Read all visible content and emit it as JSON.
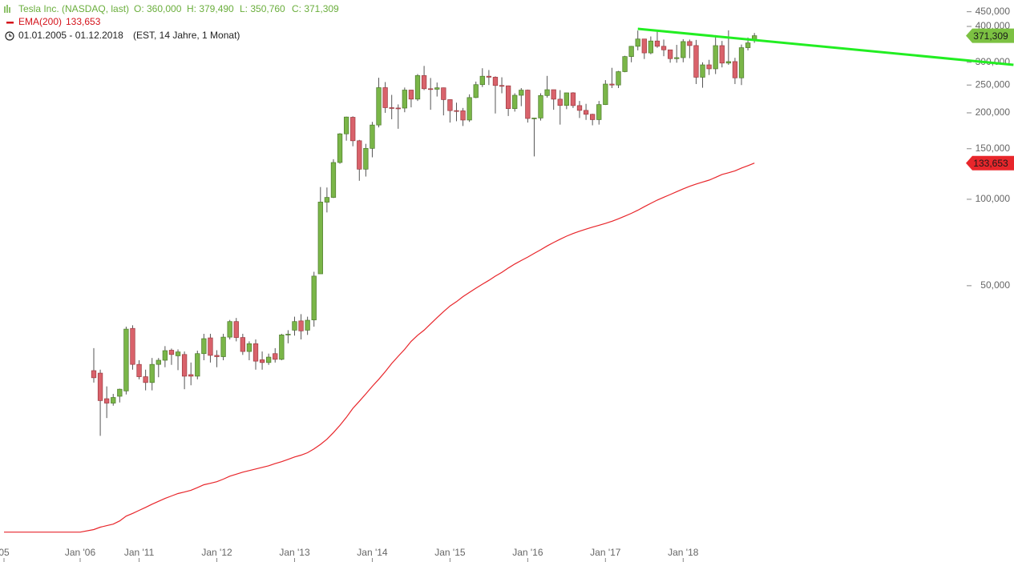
{
  "chart_data": {
    "type": "candlestick",
    "title": "Tesla Inc. (NASDAQ, last)",
    "ohlc_labels": [
      "O: 360,000",
      "H: 379,490",
      "L: 350,760",
      "C: 371,309"
    ],
    "period": "01.01.2005 - 01.12.2018",
    "period_note": "(EST, 14 Jahre, 1 Monat)",
    "log_scale": true,
    "ylim": [
      6.28,
      494.4
    ],
    "yticks": [
      {
        "value": 50,
        "label": "50,000"
      },
      {
        "value": 100,
        "label": "100,000"
      },
      {
        "value": 150,
        "label": "150,000"
      },
      {
        "value": 200,
        "label": "200,000"
      },
      {
        "value": 250,
        "label": "250,000"
      },
      {
        "value": 300,
        "label": "300,000"
      },
      {
        "value": 400,
        "label": "400,000"
      },
      {
        "value": 450,
        "label": "450,000"
      }
    ],
    "up_color": "#7ab648",
    "down_color": "#d9626b",
    "last_label": "371,309",
    "last_color": "#7cc142",
    "categories": [
      "05",
      "Jan '06",
      null,
      null,
      null,
      null,
      null,
      null,
      null,
      "Jan '11",
      null,
      null,
      null,
      null,
      null,
      null,
      null,
      null,
      null,
      null,
      null,
      "Jan '12",
      null,
      null,
      null,
      null,
      null,
      null,
      null,
      null,
      null,
      null,
      null,
      "Jan '13",
      null,
      null,
      null,
      null,
      null,
      null,
      null,
      null,
      null,
      null,
      null,
      "Jan '14",
      null,
      null,
      null,
      null,
      null,
      null,
      null,
      null,
      null,
      null,
      null,
      "Jan '15",
      null,
      null,
      null,
      null,
      null,
      null,
      null,
      null,
      null,
      null,
      null,
      "Jan '16",
      null,
      null,
      null,
      null,
      null,
      null,
      null,
      null,
      null,
      null,
      null,
      "Jan '17",
      null,
      null,
      null,
      null,
      null,
      null,
      null,
      null,
      null,
      null,
      null,
      "Jan '18",
      null,
      null,
      null,
      null,
      null,
      null,
      null,
      null,
      null,
      null,
      null
    ],
    "open": [
      null,
      null,
      25.3,
      24.8,
      20.2,
      19.5,
      20.6,
      21.5,
      35.5,
      26.6,
      24.1,
      23.0,
      26.6,
      27.5,
      29.8,
      28.5,
      28.8,
      24.5,
      24.2,
      29.0,
      32.9,
      28.6,
      28.3,
      33.1,
      37.5,
      33.0,
      29.5,
      31.4,
      27.6,
      27.0,
      29.0,
      27.7,
      33.7,
      35.0,
      37.7,
      35.0,
      38.0,
      55.0,
      97.7,
      101.5,
      134.3,
      169.0,
      193.0,
      159.9,
      127.3,
      150.4,
      181.4,
      244.8,
      208.5,
      207.9,
      207.8,
      240.1,
      223.3,
      269.7,
      242.7,
      241.7,
      244.5,
      222.4,
      203.6,
      203.3,
      188.8,
      226.1,
      250.8,
      268.3,
      266.2,
      249.1,
      248.4,
      206.9,
      230.3,
      240.0,
      191.2,
      191.9,
      229.8,
      240.8,
      223.2,
      212.3,
      234.8,
      212.0,
      204.0,
      197.7,
      189.4,
      213.7,
      251.9,
      250.0,
      278.3,
      314.1,
      341.0,
      361.6,
      323.5,
      355.9,
      341.1,
      331.5,
      308.9,
      311.4,
      354.3,
      343.1,
      266.1,
      293.9,
      284.7,
      342.9,
      298.1,
      301.7,
      264.8,
      337.3,
      360.0
    ],
    "high": [
      null,
      null,
      30.3,
      25.5,
      22.3,
      21.0,
      21.9,
      36.0,
      36.4,
      27.5,
      25.5,
      28.0,
      28.0,
      30.8,
      30.2,
      30.0,
      29.5,
      27.0,
      29.7,
      34.0,
      34.0,
      29.8,
      34.0,
      38.0,
      38.6,
      34.0,
      32.0,
      32.5,
      29.5,
      29.0,
      30.3,
      34.0,
      35.0,
      39.0,
      39.8,
      39.0,
      55.9,
      110.3,
      109.9,
      137.9,
      170.0,
      194.0,
      194.5,
      161.0,
      156.0,
      186.0,
      265.0,
      256.0,
      231.0,
      214.0,
      245.0,
      240.5,
      273.0,
      291.4,
      264.5,
      255.0,
      245.0,
      223.0,
      217.0,
      208.0,
      232.0,
      257.0,
      286.0,
      282.0,
      268.0,
      266.0,
      249.0,
      234.0,
      244.0,
      241.0,
      192.0,
      234.0,
      269.0,
      241.0,
      240.0,
      235.0,
      236.0,
      220.0,
      215.0,
      198.5,
      220.0,
      260.0,
      287.0,
      280.0,
      316.0,
      342.0,
      387.0,
      362.0,
      369.0,
      389.6,
      360.0,
      332.0,
      345.0,
      361.0,
      360.0,
      359.0,
      300.0,
      306.0,
      373.0,
      356.0,
      387.5,
      311.0,
      346.0,
      366.0,
      379.49
    ],
    "low": [
      null,
      null,
      23.0,
      15.0,
      17.3,
      19.1,
      19.6,
      20.9,
      25.5,
      23.6,
      21.6,
      21.6,
      24.0,
      26.0,
      26.5,
      25.4,
      21.8,
      22.5,
      23.6,
      27.5,
      27.0,
      26.0,
      27.5,
      32.5,
      32.0,
      28.7,
      27.5,
      25.5,
      25.5,
      26.5,
      27.0,
      27.5,
      31.5,
      33.5,
      32.5,
      33.7,
      36.0,
      55.0,
      90.0,
      101.0,
      133.0,
      160.0,
      153.0,
      116.0,
      120.0,
      140.0,
      178.0,
      200.0,
      190.0,
      176.0,
      201.0,
      209.0,
      220.0,
      240.0,
      205.0,
      228.0,
      196.0,
      185.0,
      187.0,
      180.0,
      186.0,
      225.0,
      246.0,
      250.0,
      199.0,
      234.0,
      195.0,
      202.0,
      211.0,
      185.0,
      141.0,
      188.0,
      226.0,
      205.0,
      182.0,
      206.0,
      208.0,
      192.0,
      189.0,
      181.0,
      182.0,
      213.0,
      244.0,
      244.0,
      277.0,
      300.0,
      330.0,
      308.0,
      320.0,
      337.0,
      315.0,
      299.0,
      299.0,
      300.0,
      310.0,
      252.0,
      244.6,
      271.0,
      273.0,
      288.0,
      294.0,
      252.0,
      250.0,
      330.0,
      350.76
    ],
    "close": [
      null,
      null,
      23.9,
      19.9,
      19.5,
      20.4,
      21.8,
      35.3,
      26.6,
      24.1,
      23.0,
      26.6,
      27.5,
      29.7,
      28.8,
      29.4,
      24.2,
      24.2,
      29.0,
      32.7,
      28.6,
      28.3,
      33.1,
      37.5,
      33.0,
      29.5,
      31.4,
      27.3,
      27.0,
      28.2,
      27.7,
      33.7,
      33.9,
      37.5,
      34.8,
      37.9,
      54.0,
      97.8,
      101.5,
      134.3,
      169.0,
      193.4,
      159.9,
      127.3,
      150.4,
      181.4,
      244.8,
      208.5,
      207.9,
      207.8,
      240.1,
      223.3,
      269.7,
      242.7,
      241.7,
      244.5,
      222.4,
      203.6,
      203.3,
      188.8,
      226.1,
      250.8,
      268.3,
      266.2,
      249.1,
      248.4,
      206.9,
      230.3,
      240.0,
      191.2,
      191.9,
      229.8,
      240.8,
      223.2,
      212.3,
      234.8,
      212.0,
      204.0,
      197.7,
      189.4,
      213.7,
      251.9,
      250.0,
      278.3,
      314.1,
      341.0,
      361.6,
      323.5,
      355.9,
      341.1,
      331.5,
      308.9,
      311.4,
      354.3,
      343.1,
      266.1,
      293.9,
      284.7,
      342.9,
      298.1,
      301.7,
      264.8,
      337.3,
      350.5,
      371.309
    ],
    "series": [
      {
        "name": "EMA(200)",
        "color": "#e8262b",
        "value_label": "133,653",
        "values": [
          6.93,
          6.93,
          7.07,
          7.21,
          7.3,
          7.39,
          7.58,
          7.88,
          8.05,
          8.25,
          8.45,
          8.67,
          8.87,
          9.08,
          9.26,
          9.44,
          9.56,
          9.69,
          9.9,
          10.13,
          10.25,
          10.38,
          10.6,
          10.85,
          11.03,
          11.21,
          11.35,
          11.5,
          11.65,
          11.8,
          12.0,
          12.19,
          12.42,
          12.66,
          12.85,
          13.1,
          13.5,
          14.0,
          14.6,
          15.4,
          16.3,
          17.4,
          18.7,
          19.8,
          21.0,
          22.3,
          23.6,
          25.1,
          26.8,
          28.4,
          30.0,
          32.0,
          33.6,
          35.0,
          36.8,
          38.7,
          40.6,
          42.5,
          44.0,
          45.8,
          47.4,
          49.0,
          50.6,
          52.2,
          54.0,
          55.6,
          57.6,
          59.5,
          61.2,
          62.9,
          64.8,
          66.7,
          68.8,
          70.7,
          72.6,
          74.4,
          76.0,
          77.4,
          78.7,
          80.0,
          81.2,
          82.4,
          83.8,
          85.5,
          87.4,
          89.3,
          91.6,
          94.2,
          96.8,
          99.4,
          101.6,
          103.9,
          106.3,
          108.7,
          111.0,
          113.0,
          114.8,
          116.6,
          119.2,
          122.0,
          123.7,
          125.6,
          128.5,
          131.0,
          133.653
        ]
      }
    ],
    "trendline": {
      "start": [
        86,
        392.3
      ],
      "end": [
        144,
        294.0
      ],
      "color": "#22ee22"
    }
  }
}
